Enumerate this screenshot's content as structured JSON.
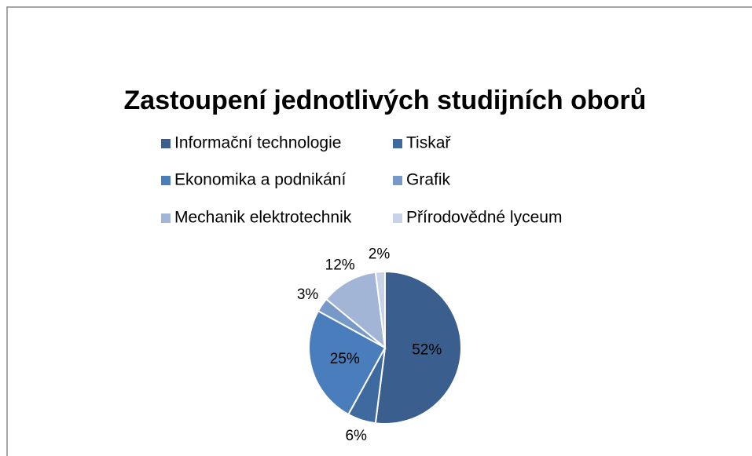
{
  "chart_data": {
    "type": "pie",
    "title": "Zastoupení jednotlivých studijních oborů",
    "categories": [
      "Informační technologie",
      "Tiskař",
      "Ekonomika a podnikání",
      "Grafik",
      "Mechanik elektrotechnik",
      "Přírodovědné lyceum"
    ],
    "values": [
      52,
      6,
      25,
      3,
      12,
      2
    ],
    "value_labels": [
      "52%",
      "6%",
      "25%",
      "3%",
      "12%",
      "2%"
    ],
    "colors": [
      "#3a5f8e",
      "#3f6aa0",
      "#4a7dbb",
      "#7699c8",
      "#a3b5d6",
      "#c9d3e7"
    ],
    "legend": "top"
  }
}
